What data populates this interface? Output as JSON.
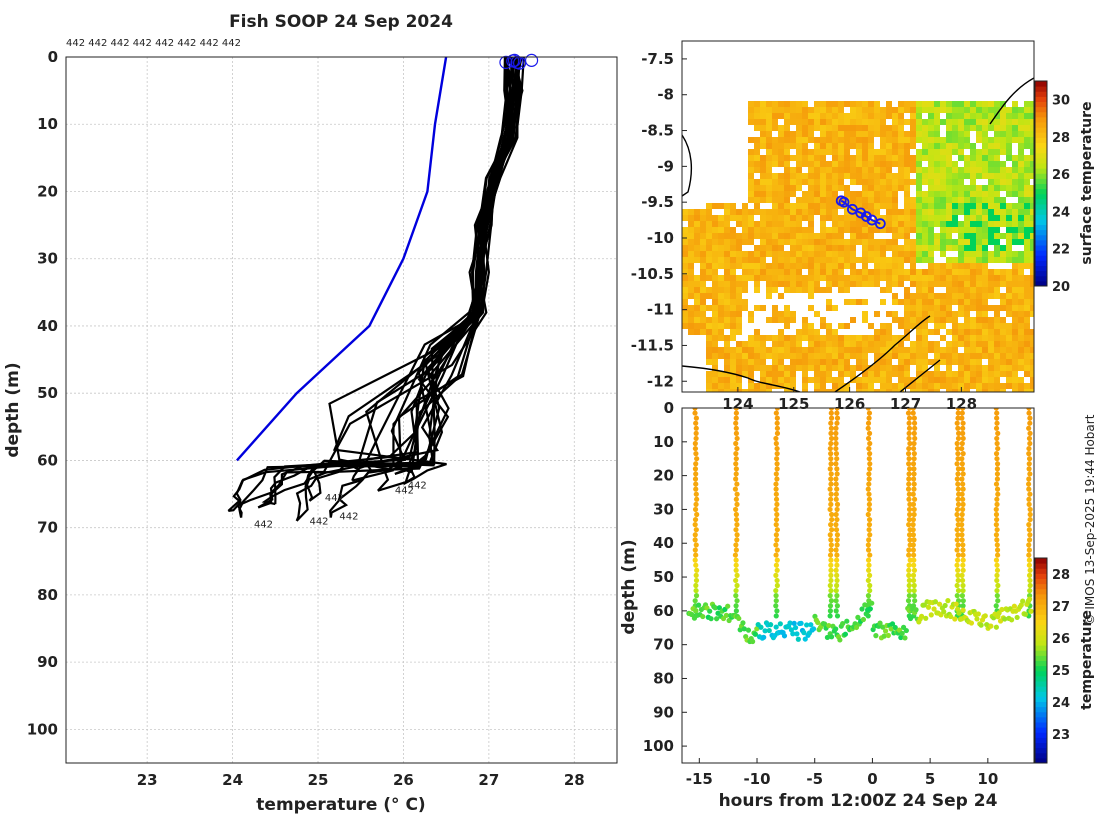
{
  "colors": {
    "profile_line": "#000000",
    "climatology_line": "#0000dd",
    "track_marker": "#1a1aee"
  },
  "left_panel": {
    "chart_data": {
      "type": "line",
      "title": "Fish SOOP 24 Sep 2024",
      "xlabel": "temperature (° C)",
      "ylabel": "depth (m)",
      "xlim": [
        22.05,
        28.5
      ],
      "ylim": [
        105,
        0
      ],
      "xticks": [
        23,
        24,
        25,
        26,
        27,
        28
      ],
      "yticks": [
        0,
        10,
        20,
        30,
        40,
        50,
        60,
        70,
        80,
        90,
        100
      ],
      "grid": true,
      "top_annotation": "442 442 442 442 442 442 442 442",
      "end_labels": [
        {
          "text": "442",
          "x": 24.25,
          "y": 70.0
        },
        {
          "text": "442",
          "x": 24.9,
          "y": 69.5
        },
        {
          "text": "442",
          "x": 25.25,
          "y": 68.8
        },
        {
          "text": "442",
          "x": 25.08,
          "y": 66.0
        },
        {
          "text": "442",
          "x": 25.9,
          "y": 64.9
        },
        {
          "text": "442",
          "x": 26.05,
          "y": 64.2
        }
      ],
      "series": [
        {
          "name": "climatology",
          "color": "#0000dd",
          "points": [
            [
              26.5,
              0
            ],
            [
              26.37,
              10
            ],
            [
              26.28,
              20
            ],
            [
              26.0,
              30
            ],
            [
              25.6,
              40
            ],
            [
              24.75,
              50
            ],
            [
              24.05,
              60
            ]
          ]
        }
      ],
      "profile_endpoints": [
        [
          23.95,
          67.5
        ],
        [
          24.1,
          68.5
        ],
        [
          24.3,
          67.0
        ],
        [
          24.5,
          66.5
        ],
        [
          24.75,
          69.0
        ],
        [
          24.9,
          66.0
        ],
        [
          25.15,
          68.5
        ],
        [
          25.4,
          63.0
        ],
        [
          25.7,
          64.5
        ],
        [
          25.9,
          62.0
        ],
        [
          26.0,
          63.5
        ],
        [
          25.8,
          60.5
        ]
      ],
      "surface_markers": [
        [
          27.2,
          0.8
        ],
        [
          27.28,
          0.6
        ],
        [
          27.3,
          0.5
        ],
        [
          27.33,
          0.8
        ],
        [
          27.36,
          0.9
        ],
        [
          27.5,
          0.5
        ]
      ]
    }
  },
  "map_panel": {
    "chart_data": {
      "type": "heatmap",
      "xlim": [
        123.0,
        129.3
      ],
      "ylim": [
        -12.15,
        -7.25
      ],
      "xticks": [
        124,
        125,
        126,
        127,
        128
      ],
      "yticks": [
        -7.5,
        -8,
        -8.5,
        -9,
        -9.5,
        -10,
        -10.5,
        -11,
        -11.5,
        -12
      ],
      "colorbar_label": "surface temperature",
      "colorbar_range": [
        20,
        31
      ],
      "colorbar_ticks": [
        20,
        22,
        24,
        26,
        28,
        30
      ],
      "track": [
        [
          125.85,
          -9.48
        ],
        [
          125.9,
          -9.5
        ],
        [
          126.05,
          -9.6
        ],
        [
          126.2,
          -9.65
        ],
        [
          126.3,
          -9.7
        ],
        [
          126.4,
          -9.75
        ],
        [
          126.55,
          -9.8
        ]
      ]
    }
  },
  "section_panel": {
    "chart_data": {
      "type": "scatter",
      "xlabel": "hours from 12:00Z 24 Sep 24",
      "ylabel": "depth (m)",
      "xlim": [
        -16.5,
        14.0
      ],
      "ylim": [
        105,
        0
      ],
      "xticks": [
        -15,
        -10,
        -5,
        0,
        5,
        10
      ],
      "yticks": [
        0,
        10,
        20,
        30,
        40,
        50,
        60,
        70,
        80,
        90,
        100
      ],
      "colorbar_label": "temperature",
      "colorbar_range": [
        22.1,
        28.5
      ],
      "colorbar_ticks": [
        23,
        24,
        25,
        26,
        27,
        28
      ],
      "casts": [
        -15.3,
        -11.8,
        -8.3,
        -3.6,
        -3.1,
        -0.3,
        3.2,
        3.6,
        7.4,
        7.8,
        10.8,
        13.6
      ]
    }
  },
  "footer": {
    "credit": "© IMOS 13-Sep-2025 19:44 Hobart"
  }
}
